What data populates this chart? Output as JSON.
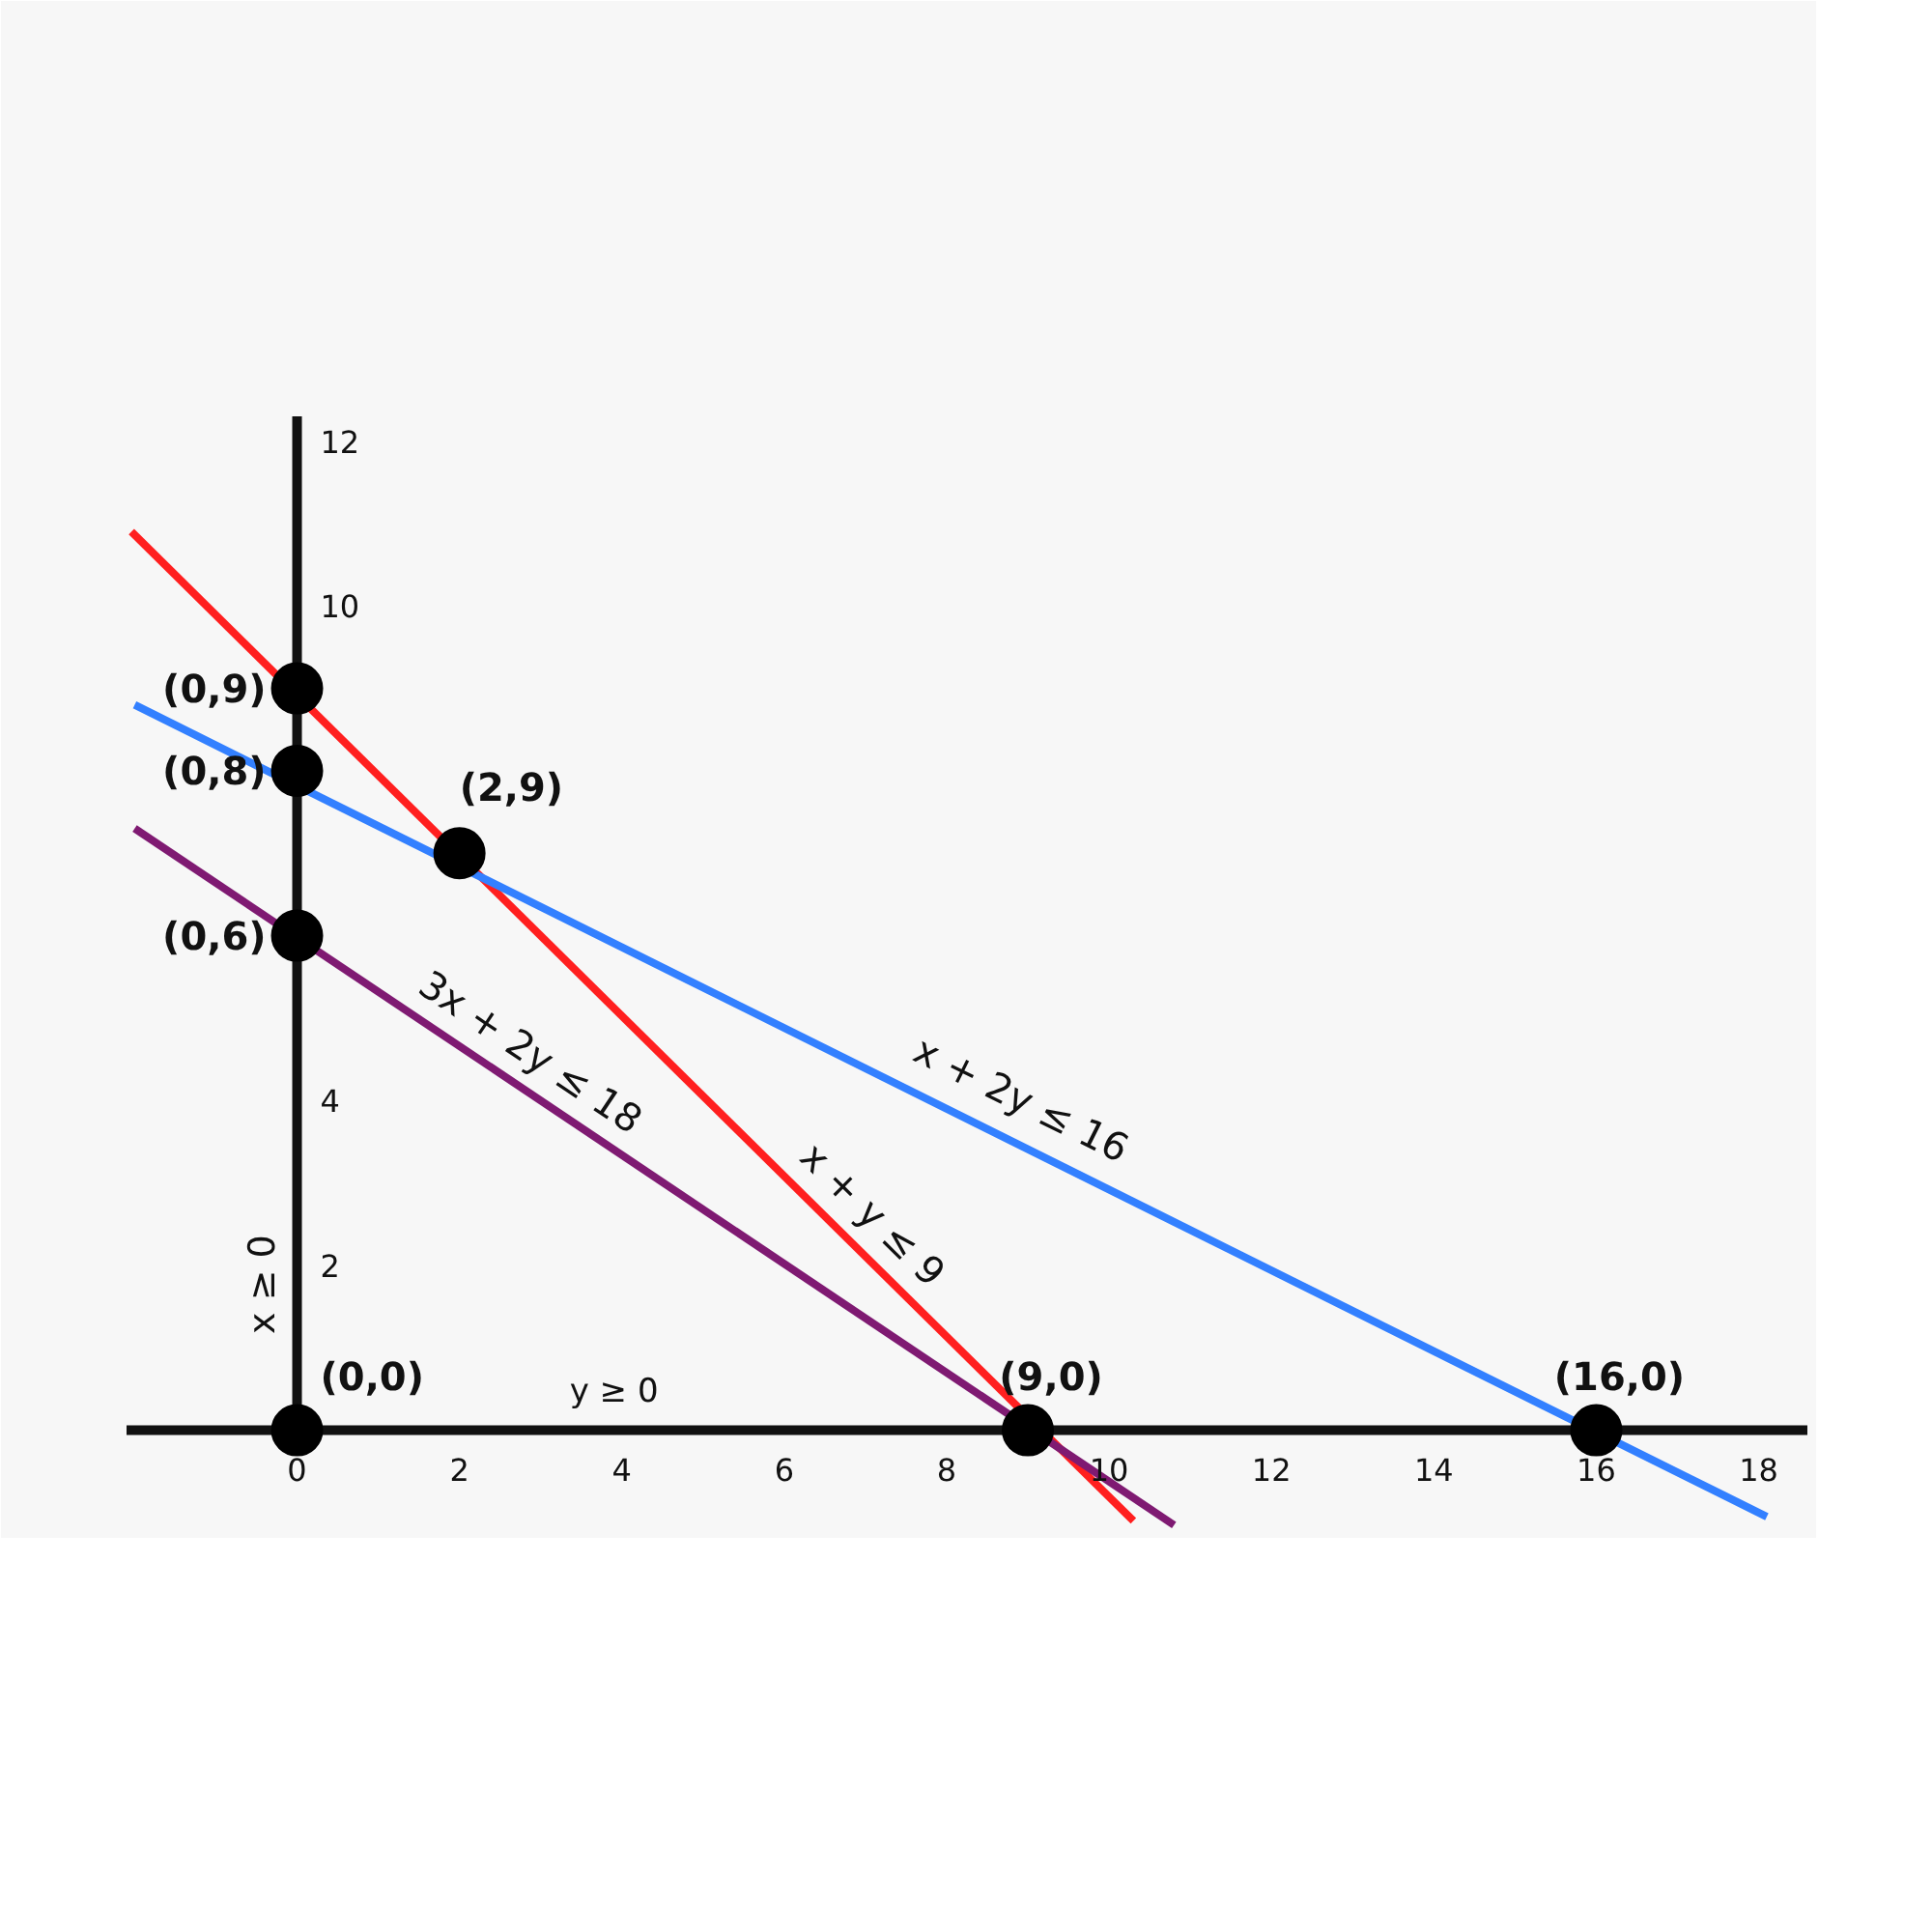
{
  "chart_data": {
    "type": "line",
    "xlim": [
      -2.1,
      18.6
    ],
    "ylim": [
      -1.2,
      12.3
    ],
    "xticks": [
      0,
      2,
      4,
      6,
      8,
      10,
      12,
      14,
      16,
      18
    ],
    "yticks": [
      2,
      4,
      10,
      12
    ],
    "grid": false,
    "line_style": "solid",
    "marker": "none",
    "series": [
      {
        "color": "#ff1f1f",
        "x": [
          -2.04,
          10.3
        ],
        "values": [
          10.9,
          -1.1
        ]
      },
      {
        "color": "#3380ff",
        "x": [
          -2.0,
          18.1
        ],
        "values": [
          8.8,
          -1.05
        ]
      },
      {
        "color": "#7f1a72",
        "x": [
          -2.0,
          10.8
        ],
        "values": [
          7.3,
          -1.15
        ]
      },
      {
        "type": "scatter",
        "marker": "circle",
        "color": "#000000",
        "x": [
          0,
          0,
          0,
          2,
          0,
          9,
          16
        ],
        "values": [
          9,
          8,
          6,
          7,
          0,
          0,
          0
        ]
      }
    ],
    "annotations": [
      "x ≥ 0",
      "y ≥ 0",
      {
        "text": "(0,9)",
        "x": 0,
        "y": 9
      },
      {
        "text": "(0,8)",
        "x": 0,
        "y": 8
      },
      {
        "text": "(0,6)",
        "x": 0,
        "y": 6
      },
      {
        "text": "(2,9)",
        "x": 2,
        "y": 7
      },
      {
        "text": "(0,0)",
        "x": 0,
        "y": 0
      },
      {
        "text": "(9,0)",
        "x": 9,
        "y": 0
      },
      {
        "text": "(16,0)",
        "x": 16,
        "y": 0
      },
      {
        "text": "x + 2y ≤ 16",
        "x": 8.73,
        "y": 3.64
      },
      {
        "text": "x + y ≤ 9",
        "x": 6.79,
        "y": 2.32
      },
      {
        "text": "3x + 2y ≤ 18",
        "x": 2.64,
        "y": 4.24
      }
    ]
  }
}
